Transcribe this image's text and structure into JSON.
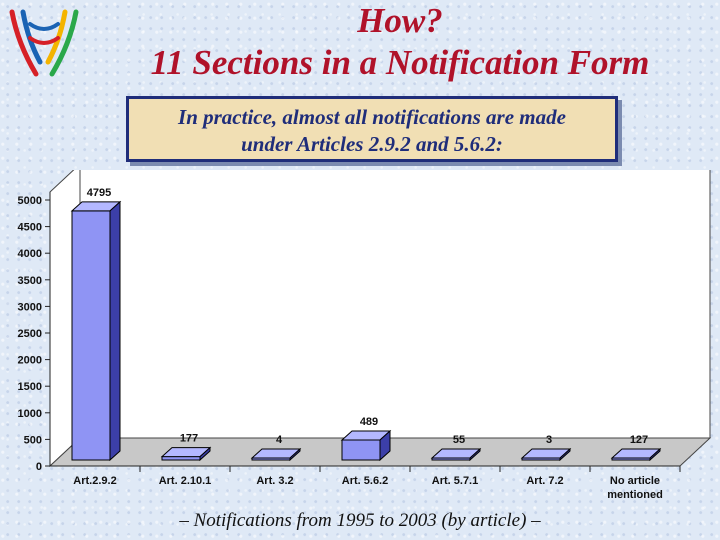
{
  "header": {
    "title_line1": "How?",
    "title_line2": "11 Sections in a Notification Form"
  },
  "logo": {
    "icon": "wto-logo-icon",
    "colors": [
      "#d62027",
      "#1a63b4",
      "#2aa84a",
      "#f4b400"
    ]
  },
  "callout": {
    "line1": "In practice, almost all notifications are made",
    "line2": "under Articles 2.9.2 and 5.6.2:",
    "background": "#f1dfb4",
    "border": "#1f2d7a"
  },
  "footnote": "– Notifications from 1995 to 2003 (by article) –",
  "chart_data": {
    "type": "bar",
    "categories": [
      "Art.2.9.2",
      "Art. 2.10.1",
      "Art. 3.2",
      "Art. 5.6.2",
      "Art. 5.7.1",
      "Art. 7.2",
      "No article mentioned"
    ],
    "category_lines": [
      [
        "Art.2.9.2"
      ],
      [
        "Art. 2.10.1"
      ],
      [
        "Art. 3.2"
      ],
      [
        "Art. 5.6.2"
      ],
      [
        "Art. 5.7.1"
      ],
      [
        "Art. 7.2"
      ],
      [
        "No article",
        "mentioned"
      ]
    ],
    "values": [
      4795,
      177,
      4,
      489,
      55,
      3,
      127
    ],
    "value_labels": [
      "4795",
      "177",
      "4",
      "489",
      "55",
      "3",
      "127"
    ],
    "ylim": [
      0,
      5000
    ],
    "yticks": [
      0,
      500,
      1000,
      1500,
      2000,
      2500,
      3000,
      3500,
      4000,
      4500,
      5000
    ],
    "ytick_labels": [
      "0",
      "500",
      "1000",
      "1500",
      "2000",
      "2500",
      "3000",
      "3500",
      "4000",
      "4500",
      "5000"
    ],
    "title": "",
    "xlabel": "",
    "ylabel": "",
    "style": "3d",
    "bar_color": "#8f94f4",
    "bar_top_color": "#b4b8ff",
    "bar_side_color": "#3c3fa8",
    "wall_color": "#ffffff",
    "grid": false
  }
}
